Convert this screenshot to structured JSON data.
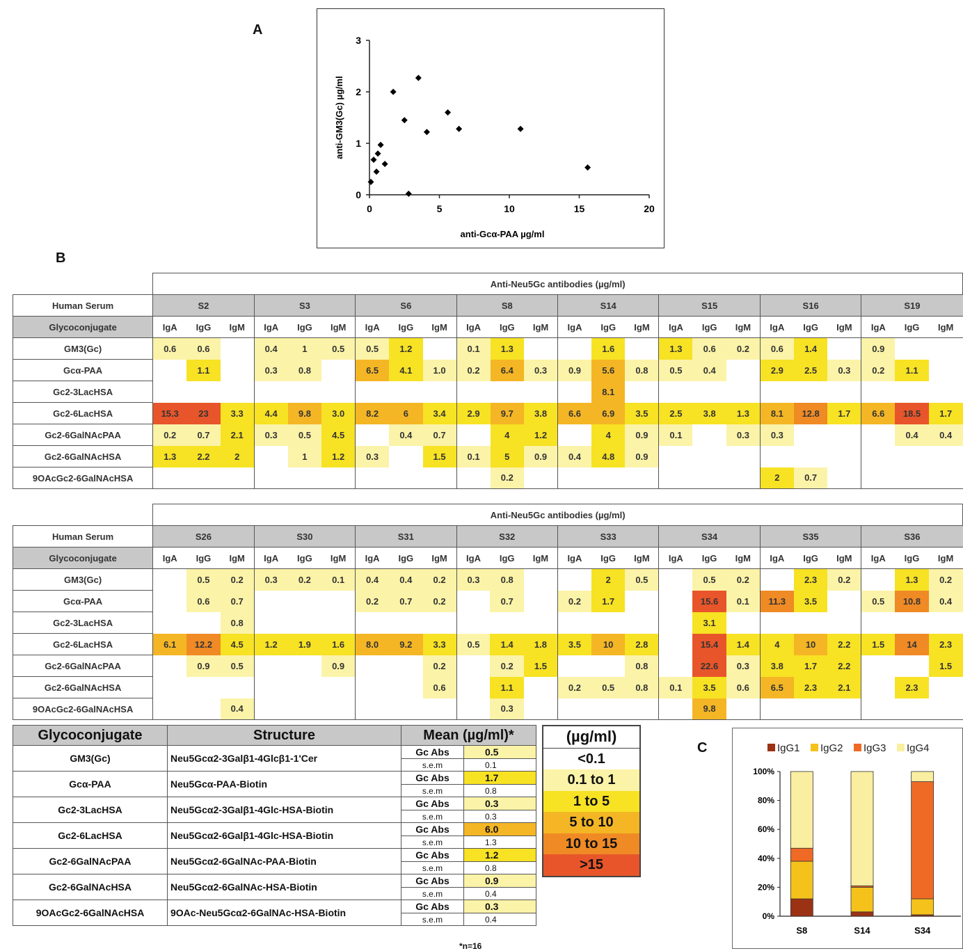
{
  "panels": {
    "a": "A",
    "b": "B",
    "c": "C"
  },
  "chart_data": [
    {
      "type": "scatter",
      "xlabel": "anti-Gcα-PAA µg/ml",
      "ylabel": "anti-GM3(Gc) µg/ml",
      "xlim": [
        0,
        20
      ],
      "ylim": [
        0,
        3
      ],
      "xticks": [
        "0",
        "5",
        "10",
        "15",
        "20"
      ],
      "yticks": [
        "0",
        "1",
        "2",
        "3"
      ],
      "points": [
        [
          0.1,
          0.25
        ],
        [
          0.3,
          0.68
        ],
        [
          0.5,
          0.45
        ],
        [
          0.6,
          0.8
        ],
        [
          0.8,
          0.97
        ],
        [
          1.1,
          0.6
        ],
        [
          1.7,
          2.0
        ],
        [
          2.5,
          1.45
        ],
        [
          2.8,
          0.02
        ],
        [
          3.5,
          2.27
        ],
        [
          4.1,
          1.22
        ],
        [
          5.6,
          1.6
        ],
        [
          6.4,
          1.28
        ],
        [
          10.8,
          1.28
        ],
        [
          15.6,
          0.53
        ]
      ]
    },
    {
      "type": "heatmap",
      "title": "Anti-Neu5Gc antibodies  (µg/ml)",
      "row_header": "Human Serum",
      "col_header": "Glycoconjugate",
      "isotypes": [
        "IgA",
        "IgG",
        "IgM"
      ],
      "rows": [
        "GM3(Gc)",
        "Gcα-PAA",
        "Gc2-3LacHSA",
        "Gc2-6LacHSA",
        "Gc2-6GalNAcPAA",
        "Gc2-6GalNAcHSA",
        "9OAcGc2-6GalNAcHSA"
      ],
      "sera": [
        {
          "name": "S2",
          "values": [
            [
              "0.6",
              "0.6",
              ""
            ],
            [
              "",
              "1.1",
              ""
            ],
            [
              "",
              "",
              ""
            ],
            [
              "15.3",
              "23",
              "3.3"
            ],
            [
              "0.2",
              "0.7",
              "2.1"
            ],
            [
              "1.3",
              "2.2",
              "2"
            ],
            [
              "",
              "",
              ""
            ]
          ]
        },
        {
          "name": "S3",
          "values": [
            [
              "0.4",
              "1",
              "0.5"
            ],
            [
              "0.3",
              "0.8",
              ""
            ],
            [
              "",
              "",
              ""
            ],
            [
              "4.4",
              "9.8",
              "3.0"
            ],
            [
              "0.3",
              "0.5",
              "4.5"
            ],
            [
              "",
              "1",
              "1.2"
            ],
            [
              "",
              "",
              ""
            ]
          ]
        },
        {
          "name": "S6",
          "values": [
            [
              "0.5",
              "1.2",
              ""
            ],
            [
              "6.5",
              "4.1",
              "1.0"
            ],
            [
              "",
              "",
              ""
            ],
            [
              "8.2",
              "6",
              "3.4"
            ],
            [
              "",
              "0.4",
              "0.7"
            ],
            [
              "0.3",
              "",
              "1.5"
            ],
            [
              "",
              "",
              ""
            ]
          ]
        },
        {
          "name": "S8",
          "values": [
            [
              "0.1",
              "1.3",
              ""
            ],
            [
              "0.2",
              "6.4",
              "0.3"
            ],
            [
              "",
              "",
              ""
            ],
            [
              "2.9",
              "9.7",
              "3.8"
            ],
            [
              "",
              "4",
              "1.2"
            ],
            [
              "0.1",
              "5",
              "0.9"
            ],
            [
              "",
              "0.2",
              ""
            ]
          ]
        },
        {
          "name": "S14",
          "values": [
            [
              "",
              "1.6",
              ""
            ],
            [
              "0.9",
              "5.6",
              "0.8"
            ],
            [
              "",
              "8.1",
              ""
            ],
            [
              "6.6",
              "6.9",
              "3.5"
            ],
            [
              "",
              "4",
              "0.9"
            ],
            [
              "0.4",
              "4.8",
              "0.9"
            ],
            [
              "",
              "",
              ""
            ]
          ]
        },
        {
          "name": "S15",
          "values": [
            [
              "1.3",
              "0.6",
              "0.2"
            ],
            [
              "0.5",
              "0.4",
              ""
            ],
            [
              "",
              "",
              ""
            ],
            [
              "2.5",
              "3.8",
              "1.3"
            ],
            [
              "0.1",
              "",
              "0.3"
            ],
            [
              "",
              "",
              ""
            ],
            [
              "",
              "",
              ""
            ]
          ]
        },
        {
          "name": "S16",
          "values": [
            [
              "0.6",
              "1.4",
              ""
            ],
            [
              "2.9",
              "2.5",
              "0.3"
            ],
            [
              "",
              "",
              ""
            ],
            [
              "8.1",
              "12.8",
              "1.7"
            ],
            [
              "0.3",
              "",
              ""
            ],
            [
              "",
              "",
              ""
            ],
            [
              "2",
              "0.7",
              ""
            ]
          ]
        },
        {
          "name": "S19",
          "values": [
            [
              "0.9",
              "",
              ""
            ],
            [
              "0.2",
              "1.1",
              ""
            ],
            [
              "",
              "",
              ""
            ],
            [
              "6.6",
              "18.5",
              "1.7"
            ],
            [
              "",
              "0.4",
              "0.4"
            ],
            [
              "",
              "",
              ""
            ],
            [
              "",
              "",
              ""
            ]
          ]
        }
      ]
    },
    {
      "type": "heatmap",
      "title": "Anti-Neu5Gc antibodies  (µg/ml)",
      "row_header": "Human Serum",
      "col_header": "Glycoconjugate",
      "isotypes": [
        "IgA",
        "IgG",
        "IgM"
      ],
      "rows": [
        "GM3(Gc)",
        "Gcα-PAA",
        "Gc2-3LacHSA",
        "Gc2-6LacHSA",
        "Gc2-6GalNAcPAA",
        "Gc2-6GalNAcHSA",
        "9OAcGc2-6GalNAcHSA"
      ],
      "sera": [
        {
          "name": "S26",
          "values": [
            [
              "",
              "0.5",
              "0.2"
            ],
            [
              "",
              "0.6",
              "0.7"
            ],
            [
              "",
              "",
              "0.8"
            ],
            [
              "6.1",
              "12.2",
              "4.5"
            ],
            [
              "",
              "0.9",
              "0.5"
            ],
            [
              "",
              "",
              ""
            ],
            [
              "",
              "",
              "0.4"
            ]
          ]
        },
        {
          "name": "S30",
          "values": [
            [
              "0.3",
              "0.2",
              "0.1"
            ],
            [
              "",
              "",
              ""
            ],
            [
              "",
              "",
              ""
            ],
            [
              "1.2",
              "1.9",
              "1.6"
            ],
            [
              "",
              "",
              "0.9"
            ],
            [
              "",
              "",
              ""
            ],
            [
              "",
              "",
              ""
            ]
          ]
        },
        {
          "name": "S31",
          "values": [
            [
              "0.4",
              "0.4",
              "0.2"
            ],
            [
              "0.2",
              "0.7",
              "0.2"
            ],
            [
              "",
              "",
              ""
            ],
            [
              "8.0",
              "9.2",
              "3.3"
            ],
            [
              "",
              "",
              "0.2"
            ],
            [
              "",
              "",
              "0.6"
            ],
            [
              "",
              "",
              ""
            ]
          ]
        },
        {
          "name": "S32",
          "values": [
            [
              "0.3",
              "0.8",
              ""
            ],
            [
              "",
              "0.7",
              ""
            ],
            [
              "",
              "",
              ""
            ],
            [
              "0.5",
              "1.4",
              "1.8"
            ],
            [
              "",
              "0.2",
              "1.5"
            ],
            [
              "",
              "1.1",
              ""
            ],
            [
              "",
              "0.3",
              ""
            ]
          ]
        },
        {
          "name": "S33",
          "values": [
            [
              "",
              "2",
              "0.5"
            ],
            [
              "0.2",
              "1.7",
              ""
            ],
            [
              "",
              "",
              ""
            ],
            [
              "3.5",
              "10",
              "2.8"
            ],
            [
              "",
              "",
              "0.8"
            ],
            [
              "0.2",
              "0.5",
              "0.8"
            ],
            [
              "",
              "",
              ""
            ]
          ]
        },
        {
          "name": "S34",
          "values": [
            [
              "",
              "0.5",
              "0.2"
            ],
            [
              "",
              "15.6",
              "0.1"
            ],
            [
              "",
              "3.1",
              ""
            ],
            [
              "",
              "15.4",
              "1.4"
            ],
            [
              "",
              "22.6",
              "0.3"
            ],
            [
              "0.1",
              "3.5",
              "0.6"
            ],
            [
              "",
              "9.8",
              ""
            ]
          ]
        },
        {
          "name": "S35",
          "values": [
            [
              "",
              "2.3",
              "0.2"
            ],
            [
              "11.3",
              "3.5",
              ""
            ],
            [
              "",
              "",
              ""
            ],
            [
              "4",
              "10",
              "2.2"
            ],
            [
              "3.8",
              "1.7",
              "2.2"
            ],
            [
              "6.5",
              "2.3",
              "2.1"
            ],
            [
              "",
              "",
              ""
            ]
          ]
        },
        {
          "name": "S36",
          "values": [
            [
              "",
              "1.3",
              "0.2"
            ],
            [
              "0.5",
              "10.8",
              "0.4"
            ],
            [
              "",
              "",
              ""
            ],
            [
              "1.5",
              "14",
              "2.3"
            ],
            [
              "",
              "",
              "1.5"
            ],
            [
              "",
              "2.3",
              ""
            ],
            [
              "",
              "",
              ""
            ]
          ]
        }
      ]
    },
    {
      "type": "table",
      "columns": [
        "Glycoconjugate",
        "Structure",
        "Mean  (µg/ml)*"
      ],
      "rows": [
        {
          "glyco": "GM3(Gc)",
          "structure": "Neu5Gcα2-3Galβ1-4Glcβ1-1'Cer",
          "abs_label": "Gc Abs",
          "mean": "0.5",
          "sem_label": "s.e.m",
          "sem": "0.1"
        },
        {
          "glyco": "Gcα-PAA",
          "structure": "Neu5Gcα-PAA-Biotin",
          "abs_label": "Gc Abs",
          "mean": "1.7",
          "sem_label": "s.e.m",
          "sem": "0.8"
        },
        {
          "glyco": "Gc2-3LacHSA",
          "structure": "Neu5Gcα2-3Galβ1-4Glc-HSA-Biotin",
          "abs_label": "Gc Abs",
          "mean": "0.3",
          "sem_label": "s.e.m",
          "sem": "0.3"
        },
        {
          "glyco": "Gc2-6LacHSA",
          "structure": "Neu5Gcα2-6Galβ1-4Glc-HSA-Biotin",
          "abs_label": "Gc Abs",
          "mean": "6.0",
          "sem_label": "s.e.m",
          "sem": "1.3"
        },
        {
          "glyco": "Gc2-6GalNAcPAA",
          "structure": "Neu5Gcα2-6GalNAc-PAA-Biotin",
          "abs_label": "Gc Abs",
          "mean": "1.2",
          "sem_label": "s.e.m",
          "sem": "0.8"
        },
        {
          "glyco": "Gc2-6GalNAcHSA",
          "structure": "Neu5Gcα2-6GalNAc-HSA-Biotin",
          "abs_label": "Gc Abs",
          "mean": "0.9",
          "sem_label": "s.e.m",
          "sem": "0.4"
        },
        {
          "glyco": "9OAcGc2-6GalNAcHSA",
          "structure": "9OAc-Neu5Gcα2-6GalNAc-HSA-Biotin",
          "abs_label": "Gc Abs",
          "mean": "0.3",
          "sem_label": "s.e.m",
          "sem": "0.4"
        }
      ],
      "note": "*n=16"
    },
    {
      "type": "bar",
      "stacked": true,
      "categories": [
        "S8",
        "S14",
        "S34"
      ],
      "series": [
        {
          "name": "IgG1",
          "color": "#9c3214",
          "values": [
            12,
            3,
            1
          ]
        },
        {
          "name": "IgG2",
          "color": "#f5c21b",
          "values": [
            26,
            17,
            11
          ]
        },
        {
          "name": "IgG3",
          "color": "#ef6a25",
          "values": [
            9,
            1,
            81
          ]
        },
        {
          "name": "IgG4",
          "color": "#faeea0",
          "values": [
            53,
            79,
            7
          ]
        }
      ],
      "ylim": [
        0,
        100
      ],
      "yticks": [
        "0%",
        "20%",
        "40%",
        "60%",
        "80%",
        "100%"
      ],
      "legend": "top"
    }
  ],
  "legend_scale": {
    "title": "(µg/ml)",
    "bins": [
      {
        "label": "<0.1",
        "color": "#ffffff"
      },
      {
        "label": "0.1  to  1",
        "color": "#fbf3a8"
      },
      {
        "label": "1  to  5",
        "color": "#f7e224"
      },
      {
        "label": "5  to 10",
        "color": "#f4b625"
      },
      {
        "label": "10  to  15",
        "color": "#ef8a25"
      },
      {
        "label": ">15",
        "color": "#e8552a"
      }
    ]
  }
}
